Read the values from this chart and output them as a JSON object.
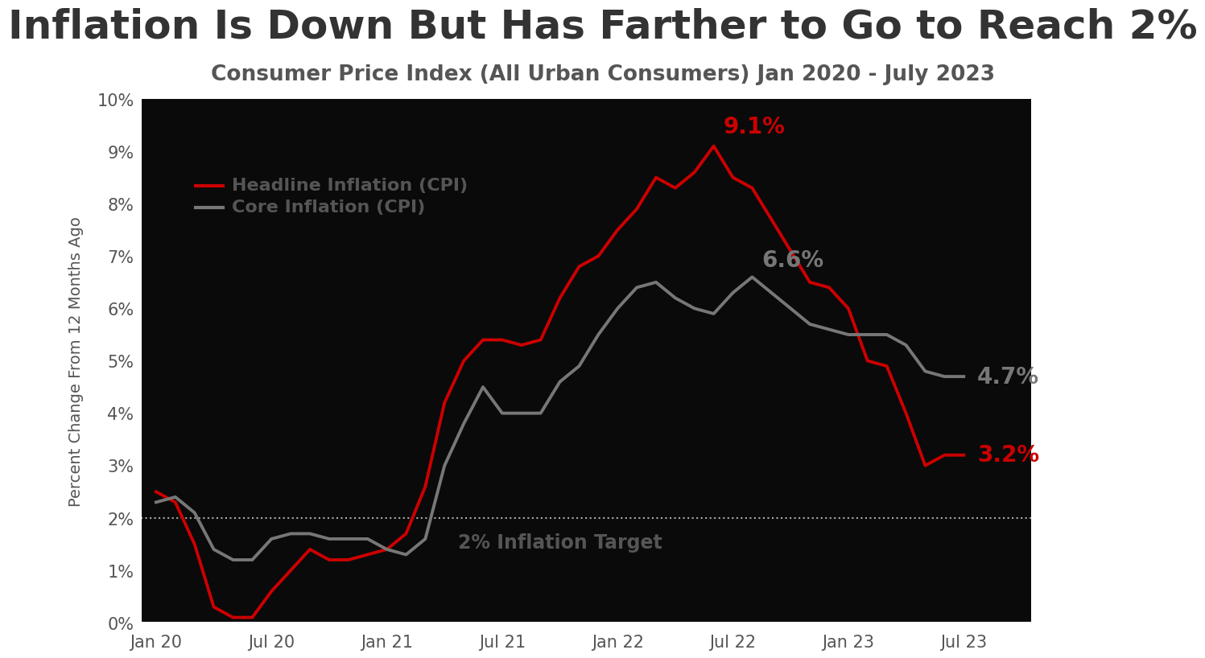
{
  "title": "Inflation Is Down But Has Farther to Go to Reach 2%",
  "subtitle": "Consumer Price Index (All Urban Consumers) Jan 2020 - July 2023",
  "ylabel": "Percent Change From 12 Months Ago",
  "target_line_y": 2.0,
  "target_label": "2% Inflation Target",
  "fig_bg_color": "#ffffff",
  "plot_bg_color": "#0a0a0a",
  "title_color": "#333333",
  "subtitle_color": "#555555",
  "tick_label_color": "#555555",
  "ylabel_color": "#555555",
  "legend_text_color": "#555555",
  "spine_color": "#ffffff",
  "target_line_color": "#aaaaaa",
  "target_label_color": "#555555",
  "headline_color": "#cc0000",
  "core_color": "#777777",
  "annotation_color_headline": "#cc0000",
  "annotation_color_core": "#777777",
  "ylim": [
    0,
    10
  ],
  "yticks": [
    0,
    1,
    2,
    3,
    4,
    5,
    6,
    7,
    8,
    9,
    10
  ],
  "headline_cpi": [
    2.5,
    2.3,
    1.5,
    0.3,
    0.1,
    0.1,
    0.6,
    1.0,
    1.4,
    1.2,
    1.2,
    1.3,
    1.4,
    1.7,
    2.6,
    4.2,
    5.0,
    5.4,
    5.4,
    5.3,
    5.4,
    6.2,
    6.8,
    7.0,
    7.5,
    7.9,
    8.5,
    8.3,
    8.6,
    9.1,
    8.5,
    8.3,
    7.7,
    7.1,
    6.5,
    6.4,
    6.0,
    5.0,
    4.9,
    4.0,
    3.0,
    3.2,
    3.2
  ],
  "core_cpi": [
    2.3,
    2.4,
    2.1,
    1.4,
    1.2,
    1.2,
    1.6,
    1.7,
    1.7,
    1.6,
    1.6,
    1.6,
    1.4,
    1.3,
    1.6,
    3.0,
    3.8,
    4.5,
    4.0,
    4.0,
    4.0,
    4.6,
    4.9,
    5.5,
    6.0,
    6.4,
    6.5,
    6.2,
    6.0,
    5.9,
    6.3,
    6.6,
    6.3,
    6.0,
    5.7,
    5.6,
    5.5,
    5.5,
    5.5,
    5.3,
    4.8,
    4.7,
    4.7
  ],
  "x_tick_positions": [
    0,
    6,
    12,
    18,
    24,
    30,
    36,
    42
  ],
  "x_tick_labels": [
    "Jan 20",
    "Jul 20",
    "Jan 21",
    "Jul 21",
    "Jan 22",
    "Jul 22",
    "Jan 23",
    "Jul 23"
  ],
  "peak_headline_idx": 29,
  "peak_headline_val": 9.1,
  "peak_core_idx": 31,
  "peak_core_val": 6.6,
  "end_idx": 42,
  "end_headline_val": 3.2,
  "end_core_val": 4.7
}
